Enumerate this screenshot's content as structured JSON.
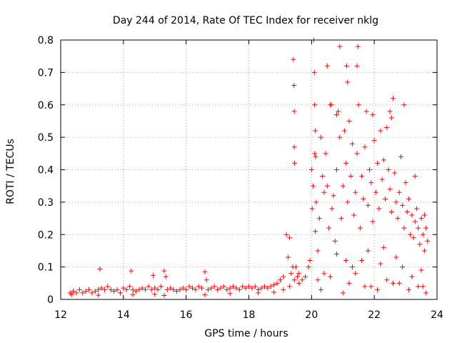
{
  "chart_data": {
    "type": "scatter",
    "title": "Day 244 of 2014, Rate Of TEC Index for receiver nklg",
    "xlabel": "GPS time / hours",
    "ylabel": "ROTI / TECUs",
    "xlim": [
      12,
      24
    ],
    "ylim": [
      0,
      0.8
    ],
    "xticks": [
      12,
      14,
      16,
      18,
      20,
      22,
      24
    ],
    "yticks": [
      0,
      0.1,
      0.2,
      0.3,
      0.4,
      0.5,
      0.6,
      0.7,
      0.8
    ],
    "xtick_labels": [
      "12",
      "14",
      "16",
      "18",
      "20",
      "22",
      "24"
    ],
    "ytick_labels": [
      "0",
      "0.1",
      "0.2",
      "0.3",
      "0.4",
      "0.5",
      "0.6",
      "0.7",
      "0.8"
    ],
    "grid": true,
    "marker": "+",
    "color": "#ff0000",
    "series": [
      {
        "name": "ROTI",
        "x": [
          12.3,
          12.35,
          12.4,
          12.5,
          12.6,
          12.7,
          12.8,
          12.9,
          13.0,
          13.1,
          13.2,
          13.25,
          13.3,
          13.4,
          13.5,
          13.6,
          13.7,
          13.8,
          13.9,
          14.0,
          14.1,
          14.2,
          14.25,
          14.3,
          14.4,
          14.5,
          14.6,
          14.7,
          14.8,
          14.9,
          14.95,
          15.0,
          15.1,
          15.2,
          15.3,
          15.35,
          15.4,
          15.5,
          15.6,
          15.7,
          15.8,
          15.9,
          16.0,
          16.1,
          16.2,
          16.3,
          16.4,
          16.5,
          16.6,
          16.65,
          16.7,
          16.8,
          16.9,
          17.0,
          17.1,
          17.2,
          17.3,
          17.4,
          17.5,
          17.6,
          17.7,
          17.8,
          17.9,
          18.0,
          18.1,
          18.2,
          18.3,
          18.4,
          18.5,
          18.6,
          18.7,
          18.8,
          18.9,
          19.0,
          19.1,
          19.2,
          19.25,
          19.3,
          19.35,
          19.4,
          19.45,
          19.5,
          19.55,
          19.6,
          19.7,
          19.8,
          19.9,
          19.95,
          20.0,
          20.02,
          20.05,
          20.1,
          20.12,
          20.15,
          20.2,
          20.25,
          20.3,
          20.35,
          20.4,
          20.45,
          20.5,
          20.55,
          20.6,
          20.65,
          20.7,
          20.75,
          20.8,
          20.85,
          20.9,
          20.95,
          21.0,
          21.05,
          21.1,
          21.15,
          21.2,
          21.25,
          21.3,
          21.35,
          21.4,
          21.45,
          21.5,
          21.55,
          21.6,
          21.65,
          21.7,
          21.75,
          21.8,
          21.85,
          21.9,
          21.95,
          22.0,
          22.05,
          22.1,
          22.15,
          22.2,
          22.25,
          22.3,
          22.35,
          22.4,
          22.45,
          22.5,
          22.55,
          22.6,
          22.65,
          22.7,
          22.75,
          22.8,
          22.85,
          22.9,
          22.95,
          23.0,
          23.05,
          23.1,
          23.15,
          23.2,
          23.25,
          23.3,
          23.35,
          23.4,
          23.45,
          23.5,
          23.55,
          23.6,
          23.65,
          23.7,
          19.42,
          19.44,
          19.45,
          19.45,
          19.46,
          20.07,
          20.09,
          20.1,
          20.12,
          20.13,
          20.5,
          20.63,
          20.9,
          21.12,
          21.48,
          21.45,
          21.15,
          20.8,
          21.95,
          22.5,
          22.55,
          22.95,
          23.3,
          23.6,
          21.1,
          21.3,
          21.8,
          22.2,
          22.7,
          20.4,
          20.8,
          21.6,
          22.3,
          22.9,
          23.5,
          13.2,
          14.3,
          15.3,
          15.0,
          16.6,
          17.4,
          18.3,
          18.8,
          19.1,
          19.3,
          19.6,
          20.3,
          21.0,
          21.7,
          22.1,
          22.6,
          23.1,
          23.4,
          23.65,
          20.2,
          20.6,
          21.2,
          21.4,
          21.9,
          22.4,
          22.8,
          23.2,
          23.55
        ],
        "y": [
          0.02,
          0.015,
          0.025,
          0.02,
          0.03,
          0.02,
          0.025,
          0.03,
          0.02,
          0.025,
          0.03,
          0.094,
          0.035,
          0.03,
          0.04,
          0.03,
          0.025,
          0.03,
          0.02,
          0.035,
          0.03,
          0.04,
          0.088,
          0.03,
          0.025,
          0.03,
          0.035,
          0.03,
          0.04,
          0.03,
          0.074,
          0.035,
          0.03,
          0.04,
          0.088,
          0.07,
          0.03,
          0.035,
          0.03,
          0.025,
          0.03,
          0.035,
          0.03,
          0.04,
          0.035,
          0.03,
          0.04,
          0.035,
          0.085,
          0.06,
          0.03,
          0.035,
          0.04,
          0.03,
          0.035,
          0.04,
          0.03,
          0.035,
          0.04,
          0.035,
          0.03,
          0.04,
          0.035,
          0.04,
          0.035,
          0.04,
          0.03,
          0.035,
          0.04,
          0.035,
          0.04,
          0.045,
          0.05,
          0.06,
          0.07,
          0.2,
          0.13,
          0.19,
          0.08,
          0.1,
          0.06,
          0.1,
          0.07,
          0.08,
          0.06,
          0.07,
          0.1,
          0.12,
          0.4,
          0.28,
          0.35,
          0.45,
          0.21,
          0.3,
          0.15,
          0.25,
          0.5,
          0.38,
          0.33,
          0.45,
          0.35,
          0.22,
          0.6,
          0.28,
          0.32,
          0.18,
          0.4,
          0.58,
          0.5,
          0.25,
          0.35,
          0.52,
          0.42,
          0.3,
          0.55,
          0.38,
          0.48,
          0.26,
          0.33,
          0.45,
          0.6,
          0.22,
          0.38,
          0.31,
          0.47,
          0.58,
          0.29,
          0.4,
          0.36,
          0.24,
          0.49,
          0.33,
          0.42,
          0.28,
          0.52,
          0.37,
          0.43,
          0.31,
          0.53,
          0.4,
          0.34,
          0.27,
          0.62,
          0.39,
          0.3,
          0.25,
          0.33,
          0.44,
          0.29,
          0.22,
          0.36,
          0.27,
          0.31,
          0.2,
          0.26,
          0.19,
          0.24,
          0.28,
          0.22,
          0.17,
          0.25,
          0.2,
          0.15,
          0.22,
          0.18,
          0.74,
          0.66,
          0.58,
          0.47,
          0.42,
          0.8,
          0.7,
          0.6,
          0.52,
          0.44,
          0.72,
          0.6,
          0.78,
          0.72,
          0.78,
          0.72,
          0.67,
          0.57,
          0.57,
          0.58,
          0.56,
          0.6,
          0.38,
          0.26,
          0.12,
          0.1,
          0.15,
          0.11,
          0.13,
          0.08,
          0.14,
          0.12,
          0.16,
          0.1,
          0.09,
          0.013,
          0.015,
          0.012,
          0.016,
          0.014,
          0.018,
          0.02,
          0.022,
          0.03,
          0.04,
          0.05,
          0.03,
          0.02,
          0.04,
          0.03,
          0.05,
          0.03,
          0.04,
          0.02,
          0.06,
          0.07,
          0.05,
          0.08,
          0.04,
          0.06,
          0.05,
          0.07,
          0.04
        ]
      }
    ]
  }
}
